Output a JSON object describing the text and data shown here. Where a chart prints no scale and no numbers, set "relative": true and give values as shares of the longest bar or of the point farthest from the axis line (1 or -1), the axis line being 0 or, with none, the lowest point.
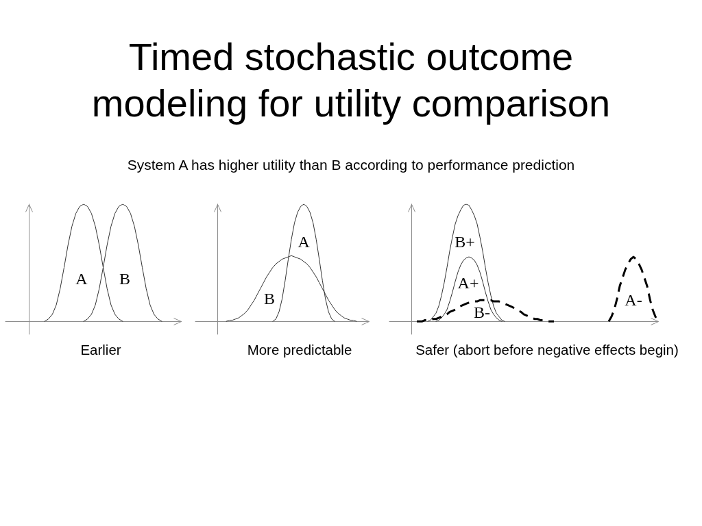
{
  "chart_data": [
    {
      "type": "line",
      "title": "Timed stochastic outcome modeling for utility comparison",
      "subtitle": "System A has higher utility than B according to performance prediction",
      "xlabel": "Earlier",
      "relative": true,
      "categories": [
        null,
        null,
        null,
        null,
        null,
        null,
        null,
        null,
        null,
        null,
        null,
        null,
        null,
        null,
        null,
        null,
        null,
        null,
        null,
        null,
        null,
        null,
        null,
        null,
        null,
        null,
        null,
        null,
        null,
        null,
        null,
        null,
        null,
        null,
        null,
        null,
        null,
        null,
        null,
        null,
        null,
        null,
        null,
        null,
        null,
        null
      ],
      "series": [
        {
          "name": "A",
          "color": "#333333",
          "values": [
            null,
            null,
            null,
            null,
            null,
            null,
            null,
            null,
            null,
            null,
            0,
            0.02,
            0.06,
            0.14,
            0.28,
            0.46,
            0.65,
            0.81,
            0.92,
            0.98,
            1,
            0.98,
            0.92,
            0.81,
            0.65,
            0.46,
            0.28,
            0.14,
            0.06,
            0.02,
            0,
            null,
            null,
            null,
            null,
            null,
            null,
            null,
            null,
            null,
            null,
            null,
            null,
            null,
            null,
            null
          ]
        },
        {
          "name": "B",
          "color": "#333333",
          "values": [
            null,
            null,
            null,
            null,
            null,
            null,
            null,
            null,
            null,
            null,
            null,
            null,
            null,
            null,
            null,
            null,
            null,
            null,
            null,
            null,
            0,
            0.02,
            0.06,
            0.14,
            0.28,
            0.46,
            0.65,
            0.81,
            0.92,
            0.98,
            1,
            0.98,
            0.92,
            0.81,
            0.65,
            0.46,
            0.28,
            0.14,
            0.06,
            0.02,
            0,
            null,
            null,
            null,
            null,
            null
          ]
        }
      ]
    },
    {
      "type": "line",
      "xlabel": "More predictable",
      "relative": true,
      "categories": [
        null,
        null,
        null,
        null,
        null,
        null,
        null,
        null,
        null,
        null,
        null,
        null,
        null,
        null,
        null,
        null,
        null,
        null,
        null,
        null,
        null,
        null,
        null,
        null,
        null,
        null,
        null,
        null,
        null,
        null,
        null,
        null,
        null,
        null,
        null,
        null,
        null,
        null,
        null,
        null,
        null,
        null,
        null,
        null,
        null,
        null,
        null,
        null,
        null,
        null,
        null,
        null,
        null,
        null,
        null,
        null,
        null
      ],
      "series": [
        {
          "name": "A",
          "color": "#333333",
          "values": [
            null,
            null,
            null,
            null,
            null,
            null,
            null,
            null,
            null,
            null,
            null,
            null,
            null,
            null,
            null,
            null,
            null,
            null,
            null,
            null,
            null,
            null,
            null,
            null,
            null,
            0,
            0.02,
            0.08,
            0.19,
            0.35,
            0.53,
            0.7,
            0.84,
            0.93,
            0.98,
            1,
            0.98,
            0.93,
            0.84,
            0.7,
            0.53,
            0.35,
            0.19,
            0.08,
            0.02,
            0,
            null,
            null,
            null,
            null,
            null,
            null,
            null,
            null,
            null,
            null,
            null
          ]
        },
        {
          "name": "B",
          "color": "#333333",
          "values": [
            null,
            null,
            null,
            null,
            null,
            null,
            null,
            null,
            null,
            null,
            0,
            0.01,
            0.01,
            0.02,
            0.03,
            0.05,
            0.07,
            0.1,
            0.14,
            0.18,
            0.23,
            0.28,
            0.33,
            0.38,
            0.42,
            0.46,
            0.49,
            0.51,
            0.53,
            0.54,
            0.55,
            0.56,
            0.55,
            0.54,
            0.53,
            0.51,
            0.49,
            0.46,
            0.42,
            0.38,
            0.33,
            0.28,
            0.23,
            0.18,
            0.14,
            0.1,
            0.07,
            0.05,
            0.03,
            0.02,
            0.01,
            0.01,
            0,
            null,
            null,
            null,
            null
          ]
        }
      ]
    },
    {
      "type": "line",
      "xlabel": "Safer (abort before negative effects begin)",
      "relative": true,
      "categories": [
        null,
        null,
        null,
        null,
        null,
        null,
        null,
        null,
        null,
        null,
        null,
        null,
        null,
        null,
        null,
        null,
        null,
        null,
        null,
        null,
        null,
        null,
        null,
        null,
        null,
        null,
        null,
        null,
        null,
        null,
        null,
        null,
        null,
        null,
        null,
        null,
        null,
        null,
        null,
        null,
        null,
        null,
        null,
        null,
        null,
        null,
        null,
        null,
        null,
        null,
        null,
        null,
        null,
        null,
        null,
        null,
        null,
        null,
        null,
        null,
        null,
        null,
        null,
        null,
        null,
        null,
        null,
        null,
        null,
        null,
        null,
        null,
        null,
        null,
        null,
        null,
        null,
        null,
        null,
        null,
        null,
        null,
        null,
        null,
        null,
        null,
        null,
        null,
        null,
        null,
        null,
        null,
        null,
        null,
        null,
        null,
        null,
        null,
        null
      ],
      "series": [
        {
          "name": "B+",
          "color": "#333333",
          "values": [
            null,
            null,
            null,
            null,
            null,
            null,
            null,
            null,
            null,
            null,
            null,
            null,
            null,
            null,
            0,
            0.01,
            0.04,
            0.07,
            0.13,
            0.22,
            0.33,
            0.46,
            0.6,
            0.72,
            0.83,
            0.9,
            0.95,
            0.99,
            1,
            0.99,
            0.95,
            0.9,
            0.83,
            0.72,
            0.6,
            0.46,
            0.33,
            0.22,
            0.13,
            0.07,
            0.04,
            0.01,
            0,
            null,
            null,
            null,
            null,
            null,
            null,
            null,
            null,
            null,
            null,
            null,
            null,
            null,
            null,
            null,
            null,
            null,
            null,
            null,
            null,
            null,
            null,
            null,
            null,
            null,
            null,
            null,
            null,
            null,
            null,
            null,
            null,
            null,
            null,
            null,
            null,
            null,
            null,
            null,
            null,
            null,
            null,
            null,
            null,
            null,
            null,
            null,
            null,
            null,
            null,
            null,
            null,
            null,
            null,
            null,
            null
          ]
        },
        {
          "name": "A+",
          "color": "#333333",
          "values": [
            null,
            null,
            null,
            null,
            null,
            null,
            null,
            null,
            null,
            null,
            null,
            null,
            null,
            null,
            null,
            null,
            null,
            0,
            0.01,
            0.03,
            0.06,
            0.1,
            0.17,
            0.25,
            0.34,
            0.42,
            0.48,
            0.52,
            0.54,
            0.55,
            0.54,
            0.52,
            0.48,
            0.42,
            0.34,
            0.25,
            0.17,
            0.1,
            0.06,
            0.03,
            0.01,
            0,
            null,
            null,
            null,
            null,
            null,
            null,
            null,
            null,
            null,
            null,
            null,
            null,
            null,
            null,
            null,
            null,
            null,
            null,
            null,
            null,
            null,
            null,
            null,
            null,
            null,
            null,
            null,
            null,
            null,
            null,
            null,
            null,
            null,
            null,
            null,
            null,
            null,
            null,
            null,
            null,
            null,
            null,
            null,
            null,
            null,
            null,
            null,
            null,
            null,
            null,
            null,
            null,
            null,
            null,
            null,
            null,
            null
          ]
        },
        {
          "name": "B-",
          "color": "#000000",
          "line_style": "dashed",
          "values": [
            null,
            null,
            null,
            null,
            null,
            null,
            null,
            null,
            null,
            null,
            0,
            0,
            0,
            0.01,
            0.01,
            0.01,
            0.02,
            0.02,
            0.03,
            0.04,
            0.05,
            0.06,
            0.08,
            0.09,
            0.1,
            0.12,
            0.13,
            0.14,
            0.15,
            0.16,
            0.17,
            0.17,
            0.17,
            0.18,
            0.18,
            0.18,
            0.18,
            0.18,
            0.17,
            0.17,
            0.17,
            0.16,
            0.15,
            0.14,
            0.13,
            0.12,
            0.1,
            0.09,
            0.08,
            0.06,
            0.05,
            0.04,
            0.03,
            0.02,
            0.02,
            0.01,
            0.01,
            0.01,
            0,
            0,
            0,
            null,
            null,
            null,
            null,
            null,
            null,
            null,
            null,
            null,
            null,
            null,
            null,
            null,
            null,
            null,
            null,
            null,
            null,
            null,
            null,
            null,
            null,
            null,
            null,
            null,
            null,
            null,
            null,
            null,
            null,
            null,
            null,
            null,
            null,
            null,
            null,
            null,
            null
          ]
        },
        {
          "name": "A-",
          "color": "#000000",
          "line_style": "dashed",
          "values": [
            null,
            null,
            null,
            null,
            null,
            null,
            null,
            null,
            null,
            null,
            null,
            null,
            null,
            null,
            null,
            null,
            null,
            null,
            null,
            null,
            null,
            null,
            null,
            null,
            null,
            null,
            null,
            null,
            null,
            null,
            null,
            null,
            null,
            null,
            null,
            null,
            null,
            null,
            null,
            null,
            null,
            null,
            null,
            null,
            null,
            null,
            null,
            null,
            null,
            null,
            null,
            null,
            null,
            null,
            null,
            null,
            null,
            null,
            null,
            null,
            null,
            null,
            null,
            null,
            null,
            null,
            null,
            null,
            null,
            null,
            null,
            null,
            null,
            null,
            null,
            null,
            null,
            null,
            null,
            null,
            0,
            0.04,
            0.1,
            0.19,
            0.3,
            0.37,
            0.44,
            0.49,
            0.53,
            0.55,
            0.53,
            0.49,
            0.44,
            0.37,
            0.3,
            0.19,
            0.1,
            0.04,
            0
          ]
        }
      ]
    }
  ]
}
